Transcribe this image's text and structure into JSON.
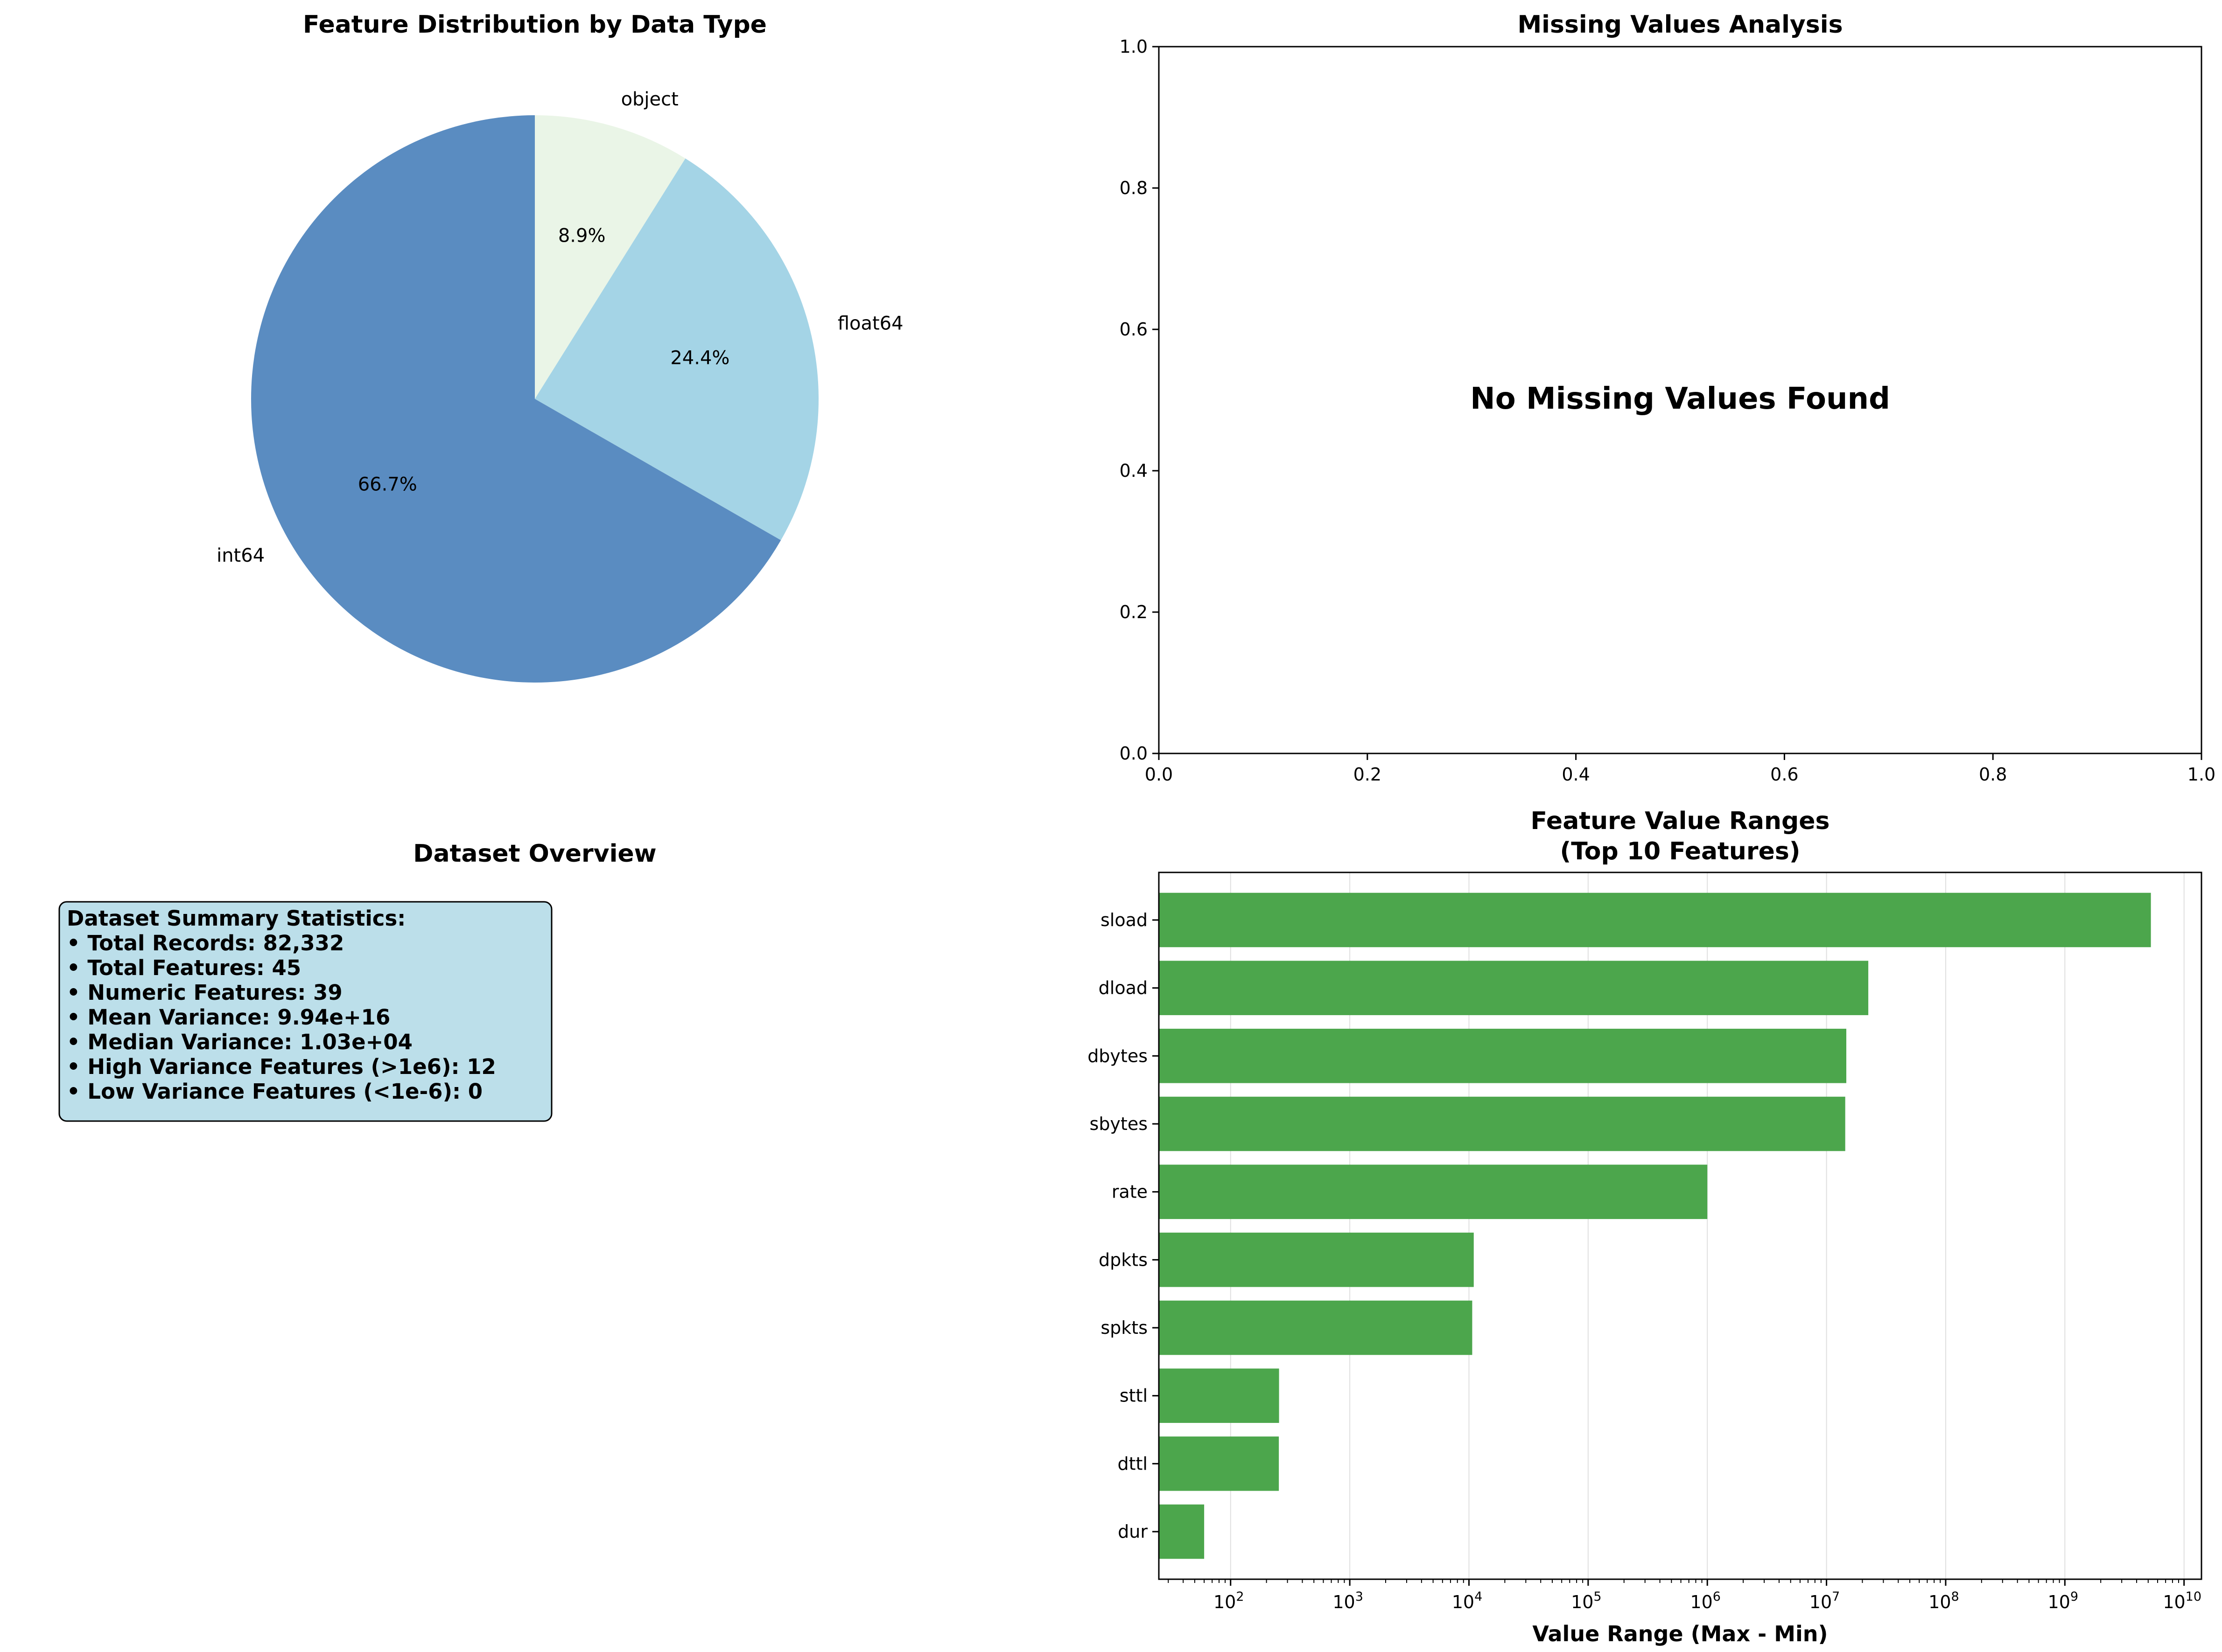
{
  "chart_data": [
    {
      "type": "pie",
      "title": "Feature Distribution by Data Type",
      "slices": [
        {
          "label": "object",
          "value": 8.9,
          "pct_label": "8.9%",
          "color": "#eaf5e7"
        },
        {
          "label": "float64",
          "value": 24.4,
          "pct_label": "24.4%",
          "color": "#a4d4e6"
        },
        {
          "label": "int64",
          "value": 66.7,
          "pct_label": "66.7%",
          "color": "#5a8cc1"
        }
      ],
      "start_angle_deg": 90,
      "direction": "clockwise"
    },
    {
      "type": "line",
      "title": "Missing Values Analysis",
      "message": "No Missing Values Found",
      "xlim": [
        0,
        1
      ],
      "ylim": [
        0,
        1
      ],
      "xticks": [
        "0.0",
        "0.2",
        "0.4",
        "0.6",
        "0.8",
        "1.0"
      ],
      "yticks": [
        "0.0",
        "0.2",
        "0.4",
        "0.6",
        "0.8",
        "1.0"
      ],
      "series": []
    },
    {
      "type": "table",
      "title": "Dataset Overview",
      "box_color": "#bcdfea",
      "lines": [
        "Dataset Summary Statistics:",
        "• Total Records: 82,332",
        "• Total Features: 45",
        "• Numeric Features: 39",
        "• Mean Variance: 9.94e+16",
        "• Median Variance: 1.03e+04",
        "• High Variance Features (>1e6): 12",
        "• Low Variance Features (<1e-6): 0"
      ]
    },
    {
      "type": "bar",
      "orientation": "horizontal",
      "title_lines": [
        "Feature Value Ranges",
        "(Top 10 Features)"
      ],
      "xlabel": "Value Range (Max - Min)",
      "x_scale": "log",
      "xlim": [
        25,
        14000000000
      ],
      "xtick_exponents": [
        "2",
        "3",
        "4",
        "5",
        "6",
        "7",
        "8",
        "9",
        "10"
      ],
      "xtick_base": "10",
      "grid": "x",
      "bar_color": "#4ca64c",
      "categories": [
        "sload",
        "dload",
        "dbytes",
        "sbytes",
        "rate",
        "dpkts",
        "spkts",
        "sttl",
        "dttl",
        "dur"
      ],
      "values": [
        5268000000,
        22420000,
        14660000,
        14360000,
        1000000,
        10970,
        10650,
        255,
        254,
        60
      ]
    }
  ]
}
